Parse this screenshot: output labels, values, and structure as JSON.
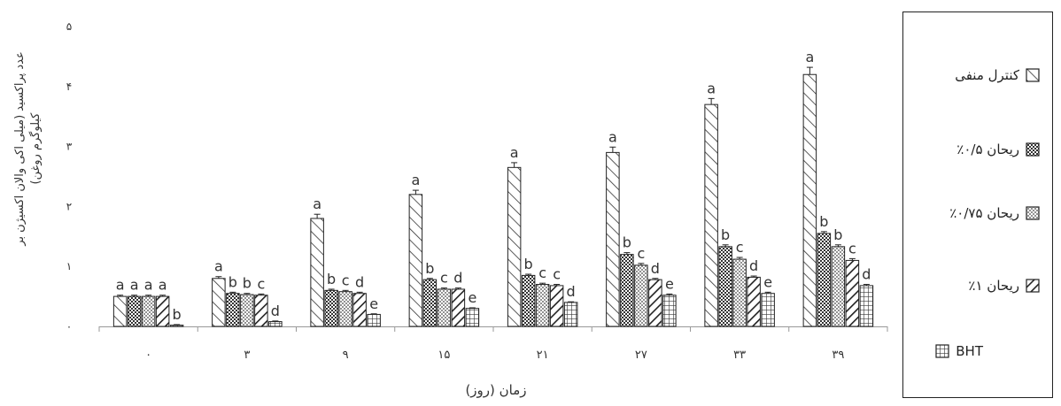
{
  "chart_data": {
    "type": "bar",
    "xlabel": "زمان (روز)",
    "ylabel": "عدد پراکسید (میلی اکی والان اکسیژن بر کیلوگرم روغن)",
    "ylabel_lines": [
      "عدد پراکسید (میلی اکی والان اکسیژن بر",
      "کیلوگرم روغن)"
    ],
    "ylim": [
      0,
      5
    ],
    "yticks": [
      "۰",
      "۱",
      "۲",
      "۳",
      "۴",
      "۵"
    ],
    "categories": [
      "۰",
      "۳",
      "۹",
      "۱۵",
      "۲۱",
      "۲۷",
      "۳۳",
      "۳۹"
    ],
    "legend_position": "right",
    "series": [
      {
        "name": "کنترل منفی",
        "pattern": "diag-wide",
        "values": [
          0.5,
          0.8,
          1.8,
          2.2,
          2.65,
          2.9,
          3.7,
          4.2
        ],
        "errors": [
          0.02,
          0.03,
          0.07,
          0.07,
          0.08,
          0.09,
          0.1,
          0.12
        ],
        "letters": [
          "a",
          "a",
          "a",
          "a",
          "a",
          "a",
          "a",
          "a"
        ]
      },
      {
        "name": "ریحان ۰/۵٪",
        "pattern": "checker",
        "values": [
          0.5,
          0.55,
          0.6,
          0.78,
          0.85,
          1.2,
          1.33,
          1.55
        ],
        "errors": [
          0.02,
          0.02,
          0.02,
          0.02,
          0.02,
          0.03,
          0.03,
          0.03
        ],
        "letters": [
          "a",
          "b",
          "b",
          "b",
          "b",
          "b",
          "b",
          "b"
        ]
      },
      {
        "name": "ریحان ۰/۷۵٪",
        "pattern": "dots",
        "values": [
          0.5,
          0.53,
          0.58,
          0.62,
          0.7,
          1.02,
          1.12,
          1.33
        ],
        "errors": [
          0.02,
          0.02,
          0.02,
          0.02,
          0.02,
          0.03,
          0.03,
          0.03
        ],
        "letters": [
          "a",
          "b",
          "c",
          "c",
          "c",
          "c",
          "c",
          "b"
        ]
      },
      {
        "name": "ریحان ۱٪",
        "pattern": "diag-bold",
        "values": [
          0.5,
          0.52,
          0.55,
          0.62,
          0.68,
          0.78,
          0.82,
          1.1
        ],
        "errors": [
          0.02,
          0.02,
          0.02,
          0.02,
          0.02,
          0.02,
          0.02,
          0.03
        ],
        "letters": [
          "a",
          "c",
          "d",
          "d",
          "c",
          "d",
          "d",
          "c"
        ]
      },
      {
        "name": "BHT",
        "pattern": "grid",
        "values": [
          0.02,
          0.08,
          0.2,
          0.3,
          0.4,
          0.52,
          0.55,
          0.68
        ],
        "errors": [
          0.01,
          0.01,
          0.01,
          0.01,
          0.01,
          0.02,
          0.02,
          0.02
        ],
        "letters": [
          "b",
          "d",
          "e",
          "e",
          "d",
          "e",
          "e",
          "d"
        ]
      }
    ]
  }
}
